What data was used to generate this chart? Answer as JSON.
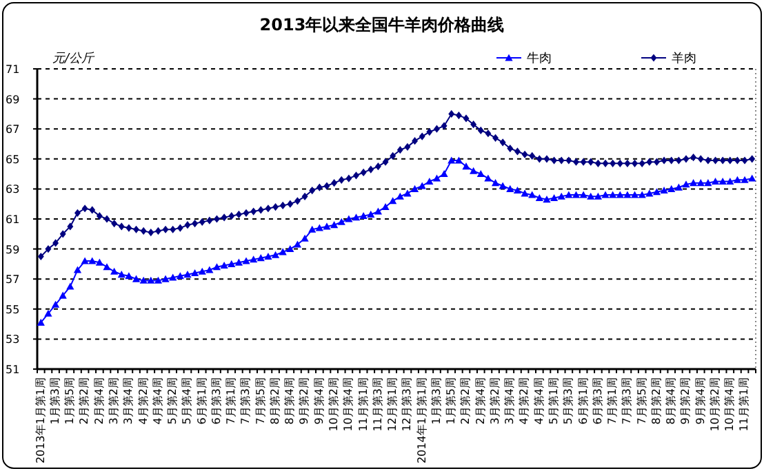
{
  "chart_data": {
    "type": "line",
    "title": "2013年以来全国牛羊肉价格曲线",
    "ylabel": "元/公斤",
    "categories": [
      "2013年1月第1周",
      null,
      "1月第3周",
      null,
      "1月第5周",
      null,
      "2月第2周",
      null,
      "2月第4周",
      null,
      "3月第2周",
      null,
      "3月第4周",
      null,
      "4月第2周",
      null,
      "4月第4周",
      null,
      "5月第2周",
      null,
      "5月第4周",
      null,
      "6月第1周",
      null,
      "6月第3周",
      null,
      "7月第1周",
      null,
      "7月第3周",
      null,
      "7月第5周",
      null,
      "8月第2周",
      null,
      "8月第4周",
      null,
      "9月第2周",
      null,
      "9月第4周",
      null,
      "10月第2周",
      null,
      "10月第4周",
      null,
      "11月第1周",
      null,
      "11月第3周",
      null,
      "12月第1周",
      null,
      "12月第3周",
      null,
      "2014年1月第1周",
      null,
      "1月第3周",
      null,
      "1月第5周",
      null,
      "2月第2周",
      null,
      "2月第4周",
      null,
      "3月第2周",
      null,
      "3月第4周",
      null,
      "4月第2周",
      null,
      "4月第4周",
      null,
      "5月第1周",
      null,
      "5月第3周",
      null,
      "6月第1周",
      null,
      "6月第3周",
      null,
      "7月第1周",
      null,
      "7月第3周",
      null,
      "7月第5周",
      null,
      "8月第2周",
      null,
      "8月第4周",
      null,
      "9月第2周",
      null,
      "9月第4周",
      null,
      "10月第2周",
      null,
      "10月第4周",
      null,
      "11月第1周",
      null
    ],
    "series": [
      {
        "name": "牛肉",
        "color": "#0000ff",
        "marker": "triangle",
        "values": [
          54.1,
          54.7,
          55.3,
          55.9,
          56.5,
          57.6,
          58.2,
          58.2,
          58.1,
          57.8,
          57.5,
          57.3,
          57.2,
          57.0,
          56.9,
          56.9,
          56.9,
          57.0,
          57.1,
          57.2,
          57.3,
          57.4,
          57.5,
          57.6,
          57.8,
          57.9,
          58.0,
          58.1,
          58.2,
          58.3,
          58.4,
          58.5,
          58.6,
          58.8,
          59.0,
          59.3,
          59.7,
          60.3,
          60.4,
          60.5,
          60.6,
          60.8,
          61.0,
          61.1,
          61.2,
          61.3,
          61.5,
          61.8,
          62.2,
          62.5,
          62.7,
          63.0,
          63.2,
          63.5,
          63.7,
          64.0,
          64.9,
          64.9,
          64.5,
          64.2,
          64.0,
          63.7,
          63.4,
          63.2,
          63.0,
          62.9,
          62.7,
          62.6,
          62.4,
          62.3,
          62.4,
          62.5,
          62.6,
          62.6,
          62.6,
          62.5,
          62.5,
          62.6,
          62.6,
          62.6,
          62.6,
          62.6,
          62.6,
          62.7,
          62.8,
          62.9,
          63.0,
          63.1,
          63.3,
          63.4,
          63.4,
          63.4,
          63.5,
          63.5,
          63.5,
          63.6,
          63.6,
          63.7
        ]
      },
      {
        "name": "羊肉",
        "color": "#000080",
        "marker": "diamond",
        "values": [
          58.5,
          59.0,
          59.4,
          60.0,
          60.5,
          61.4,
          61.7,
          61.6,
          61.2,
          61.0,
          60.7,
          60.5,
          60.4,
          60.3,
          60.2,
          60.1,
          60.2,
          60.3,
          60.3,
          60.4,
          60.6,
          60.7,
          60.8,
          60.9,
          61.0,
          61.1,
          61.2,
          61.3,
          61.4,
          61.5,
          61.6,
          61.7,
          61.8,
          61.9,
          62.0,
          62.2,
          62.5,
          62.9,
          63.1,
          63.2,
          63.4,
          63.6,
          63.7,
          63.9,
          64.1,
          64.3,
          64.5,
          64.8,
          65.2,
          65.6,
          65.8,
          66.2,
          66.5,
          66.8,
          67.0,
          67.2,
          68.0,
          67.9,
          67.7,
          67.3,
          66.9,
          66.7,
          66.4,
          66.1,
          65.7,
          65.5,
          65.3,
          65.2,
          65.0,
          65.0,
          64.9,
          64.9,
          64.9,
          64.8,
          64.8,
          64.8,
          64.7,
          64.7,
          64.7,
          64.7,
          64.7,
          64.7,
          64.7,
          64.8,
          64.8,
          64.9,
          64.9,
          64.9,
          65.0,
          65.1,
          65.0,
          64.9,
          64.9,
          64.9,
          64.9,
          64.9,
          64.9,
          65.0
        ]
      }
    ],
    "ylim": [
      51,
      71
    ],
    "yticks": [
      51,
      53,
      55,
      57,
      59,
      61,
      63,
      65,
      67,
      69,
      71
    ],
    "grid": "y",
    "legend": "top right",
    "line_style": "solid"
  }
}
